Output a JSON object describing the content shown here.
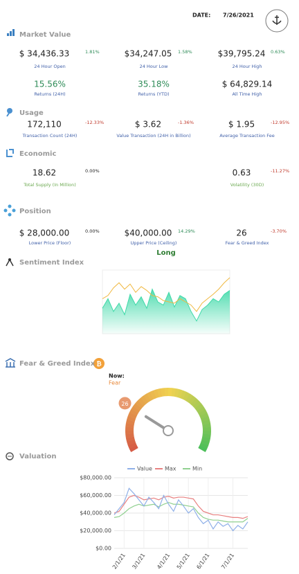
{
  "header": {
    "date_label": "DATE:",
    "date": "7/26/2021"
  },
  "sections": [
    {
      "title": "Market Value",
      "rows": [
        [
          {
            "value": "$ 34,436.33",
            "change": "1.81%",
            "label": "24 Hour Open"
          },
          {
            "value": "$34,247.05",
            "change": "1.58%",
            "label": "24 Hour Low"
          },
          {
            "value": "$39,795.24",
            "change": "0.63%",
            "label": "24 Hour High"
          }
        ],
        [
          {
            "value": "15.56%",
            "label": "Returns (24H)"
          },
          {
            "value": "35.18%",
            "label": "Returns (YTD)"
          },
          {
            "value": "$ 64,829.14",
            "label": "All Time High"
          }
        ]
      ]
    },
    {
      "title": "Usage",
      "rows": [
        [
          {
            "value": "172,110",
            "change": "-12.33%",
            "label": "Transaction Count (24H)"
          },
          {
            "value": "$ 3.62",
            "change": "-1.36%",
            "label": "Value Transaction (24H in Billion)"
          },
          {
            "value": "$ 1.95",
            "change": "-12.95%",
            "label": "Average Transaction Fee"
          }
        ]
      ]
    },
    {
      "title": "Economic",
      "rows": [
        [
          {
            "value": "18.62",
            "change": "0.00%",
            "label": "Total Supply (In Million)"
          },
          {
            "value": "0.63",
            "change": "-11.27%",
            "label": "Volatility (30D)"
          }
        ]
      ]
    },
    {
      "title": "Position",
      "rows": [
        [
          {
            "value": "$ 28,000.00",
            "change": "0.00%",
            "label": "Lower Price (Floor)"
          },
          {
            "value": "$40,000.00",
            "change": "14.29%",
            "label": "Upper Price (Ceiling)"
          },
          {
            "value": "26",
            "change": "-3.70%",
            "label": "Fear & Greed Index"
          }
        ]
      ],
      "signal": "Long"
    }
  ],
  "sentiment": {
    "title": "Sentiment Index",
    "type": "line",
    "ylim": [
      0,
      100
    ],
    "series": [
      {
        "color": "#f0b840",
        "values": [
          55,
          60,
          72,
          80,
          70,
          78,
          65,
          74,
          68,
          60,
          58,
          52,
          50,
          48,
          55,
          50,
          45,
          35,
          48,
          55,
          62,
          70,
          80,
          88
        ]
      },
      {
        "color": "#3fd9a8",
        "values": [
          40,
          55,
          35,
          48,
          30,
          62,
          45,
          58,
          40,
          70,
          50,
          45,
          65,
          42,
          60,
          55,
          35,
          20,
          38,
          45,
          55,
          50,
          62,
          68
        ]
      }
    ]
  },
  "fear_greed": {
    "title": "Fear & Greed Index",
    "now_label": "Now:",
    "now": "Fear",
    "value": 26,
    "range": [
      0,
      100
    ]
  },
  "valuation": {
    "title": "Valuation",
    "type": "line",
    "categories": [
      null,
      null,
      "2/1/21",
      null,
      null,
      null,
      "3/1/21",
      null,
      null,
      null,
      null,
      "4/1/21",
      null,
      null,
      null,
      "5/1/21",
      null,
      null,
      null,
      "6/1/21",
      null,
      null,
      null,
      null,
      "7/1/21",
      null,
      null,
      null
    ],
    "ylim": [
      0,
      80000
    ],
    "yticks": [
      {
        "value": 0,
        "label": "$0.00"
      },
      {
        "value": 20000,
        "label": "$20,000.00"
      },
      {
        "value": 40000,
        "label": "$40,000.00"
      },
      {
        "value": 60000,
        "label": "$60,000.00"
      },
      {
        "value": 80000,
        "label": "$80,000.00"
      }
    ],
    "series": [
      {
        "name": "Value",
        "color": "#8fb0e8",
        "values": [
          38000,
          45000,
          52000,
          68000,
          62000,
          55000,
          48000,
          58000,
          52000,
          45000,
          60000,
          50000,
          42000,
          55000,
          48000,
          40000,
          45000,
          35000,
          28000,
          32000,
          22000,
          30000,
          25000,
          28000,
          20000,
          26000,
          22000,
          30000
        ]
      },
      {
        "name": "Max",
        "color": "#e88080",
        "values": [
          40000,
          42000,
          50000,
          58000,
          60000,
          58000,
          55000,
          56000,
          57000,
          55000,
          58000,
          59000,
          57000,
          58000,
          58000,
          57000,
          56000,
          48000,
          42000,
          40000,
          38000,
          38000,
          37000,
          36000,
          35000,
          35000,
          34000,
          36000
        ]
      },
      {
        "name": "Min",
        "color": "#90d090",
        "values": [
          35000,
          36000,
          40000,
          45000,
          48000,
          50000,
          48000,
          49000,
          50000,
          47000,
          50000,
          52000,
          50000,
          50000,
          49000,
          48000,
          47000,
          40000,
          35000,
          33000,
          32000,
          32000,
          31000,
          30000,
          30000,
          30000,
          30000,
          34000
        ]
      }
    ]
  }
}
